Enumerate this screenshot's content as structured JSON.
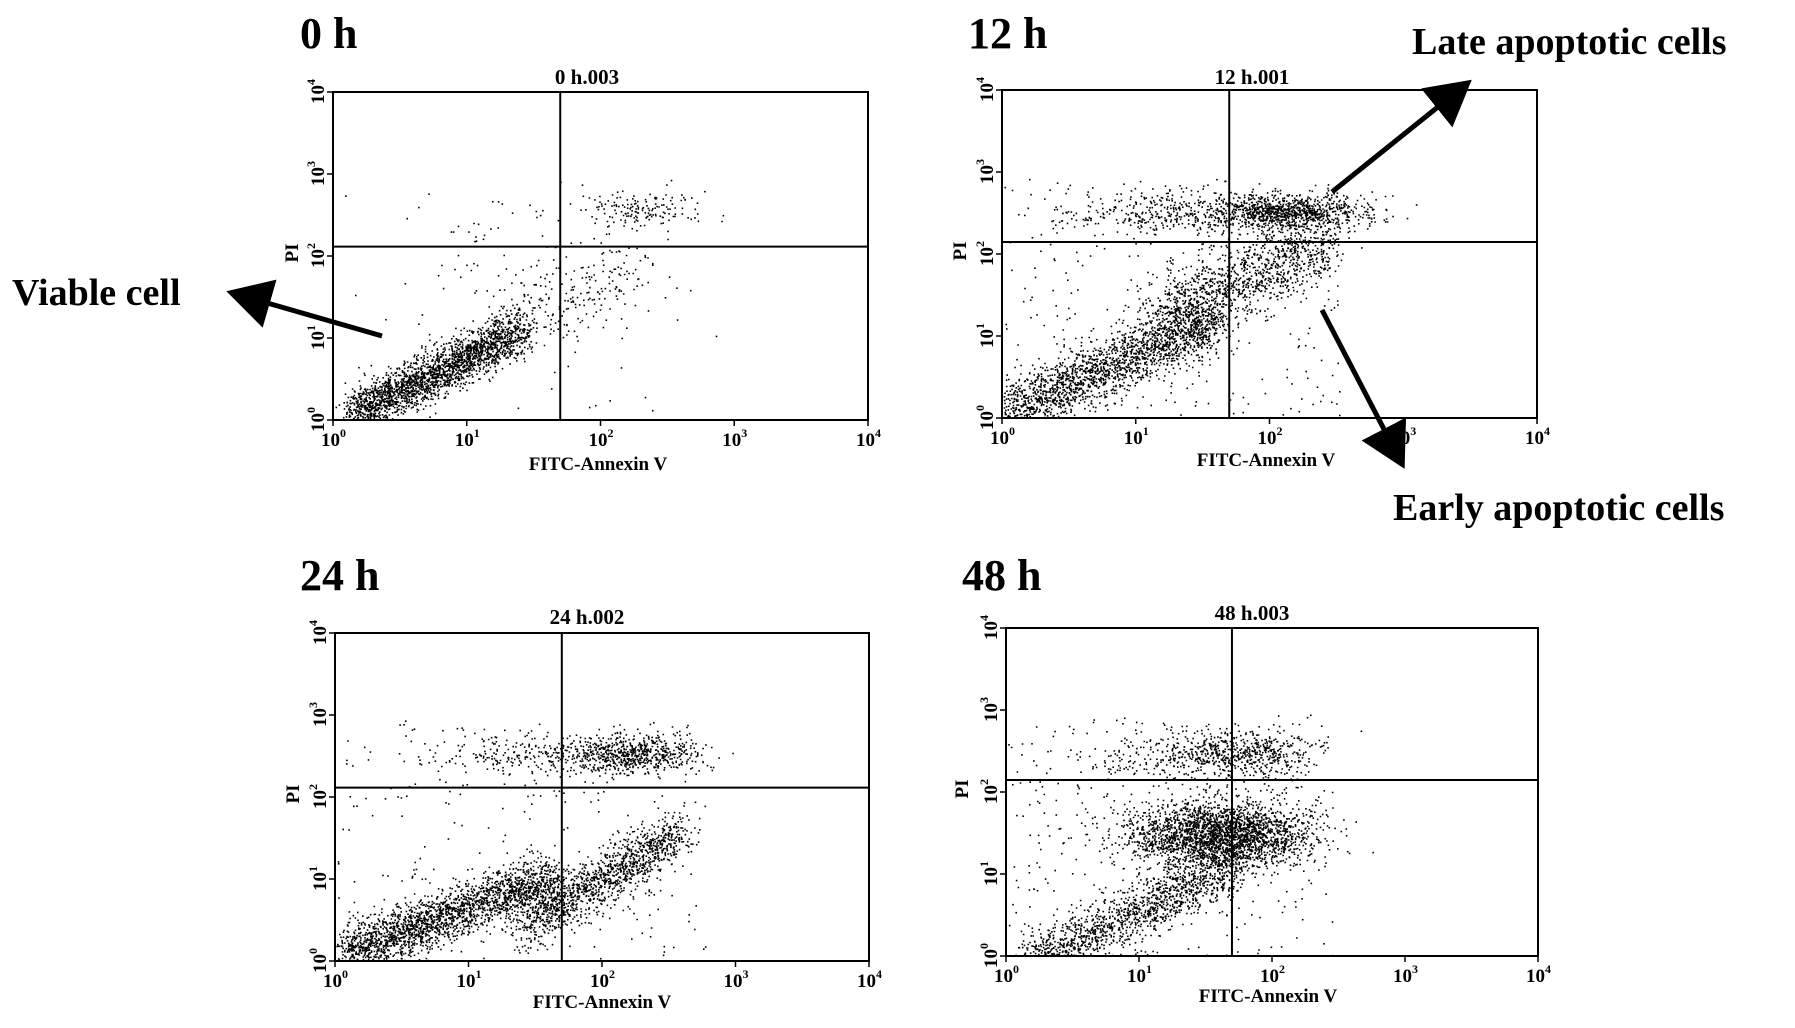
{
  "figure": {
    "annotations": [
      {
        "id": "viable",
        "text": "Viable cell"
      },
      {
        "id": "late",
        "text": "Late apoptotic cells"
      },
      {
        "id": "early",
        "text": "Early apoptotic cells"
      }
    ]
  },
  "chart_data": [
    {
      "type": "scatter",
      "panel_label": "0 h",
      "title": "0 h.003",
      "xlabel": "FITC-Annexin V",
      "ylabel": "PI",
      "x_scale": "log",
      "y_scale": "log",
      "xlim": [
        1,
        10000
      ],
      "ylim": [
        1,
        10000
      ],
      "x_ticks": [
        {
          "base": "10",
          "exp": "0"
        },
        {
          "base": "10",
          "exp": "1"
        },
        {
          "base": "10",
          "exp": "2"
        },
        {
          "base": "10",
          "exp": "3"
        },
        {
          "base": "10",
          "exp": "4"
        }
      ],
      "y_ticks": [
        {
          "base": "10",
          "exp": "0"
        },
        {
          "base": "10",
          "exp": "1"
        },
        {
          "base": "10",
          "exp": "2"
        },
        {
          "base": "10",
          "exp": "3"
        },
        {
          "base": "10",
          "exp": "4"
        }
      ],
      "gate": {
        "x": 50,
        "y": 130
      },
      "populations": [
        {
          "type": "diag",
          "x0": 1.4,
          "x1": 25,
          "slope": 0.82,
          "intercept": -0.05,
          "spread": 0.14,
          "n": 2300
        },
        {
          "type": "diag",
          "x0": 20,
          "x1": 160,
          "slope": 0.8,
          "intercept": 0.1,
          "spread": 0.3,
          "n": 260
        },
        {
          "type": "blob",
          "cx": 200,
          "cy": 380,
          "sx": 0.22,
          "sy": 0.1,
          "n": 150
        },
        {
          "type": "blob",
          "cx": 15,
          "cy": 140,
          "sx": 0.35,
          "sy": 0.35,
          "n": 40
        },
        {
          "type": "uniform",
          "x0": 1,
          "x1": 800,
          "y0": 1,
          "y1": 1000,
          "n": 60
        }
      ]
    },
    {
      "type": "scatter",
      "panel_label": "12 h",
      "title": "12 h.001",
      "xlabel": "FITC-Annexin V",
      "ylabel": "PI",
      "x_scale": "log",
      "y_scale": "log",
      "xlim": [
        1,
        10000
      ],
      "ylim": [
        1,
        10000
      ],
      "x_ticks": [
        {
          "base": "10",
          "exp": "0"
        },
        {
          "base": "10",
          "exp": "1"
        },
        {
          "base": "10",
          "exp": "2"
        },
        {
          "base": "10",
          "exp": "3"
        },
        {
          "base": "10",
          "exp": "4"
        }
      ],
      "y_ticks": [
        {
          "base": "10",
          "exp": "0"
        },
        {
          "base": "10",
          "exp": "1"
        },
        {
          "base": "10",
          "exp": "2"
        },
        {
          "base": "10",
          "exp": "3"
        },
        {
          "base": "10",
          "exp": "4"
        }
      ],
      "gate": {
        "x": 50,
        "y": 140
      },
      "populations": [
        {
          "type": "diag",
          "x0": 1,
          "x1": 40,
          "slope": 0.72,
          "intercept": 0.05,
          "spread": 0.18,
          "n": 2000
        },
        {
          "type": "diag",
          "x0": 15,
          "x1": 260,
          "slope": 0.7,
          "intercept": 0.45,
          "spread": 0.22,
          "n": 1200
        },
        {
          "type": "blob",
          "cx": 130,
          "cy": 330,
          "sx": 0.3,
          "sy": 0.11,
          "n": 1000
        },
        {
          "type": "blob",
          "cx": 18,
          "cy": 330,
          "sx": 0.4,
          "sy": 0.13,
          "n": 350
        },
        {
          "type": "uniform",
          "x0": 1,
          "x1": 350,
          "y0": 1,
          "y1": 900,
          "n": 300
        }
      ]
    },
    {
      "type": "scatter",
      "panel_label": "24 h",
      "title": "24 h.002",
      "xlabel": "FITC-Annexin V",
      "ylabel": "PI",
      "x_scale": "log",
      "y_scale": "log",
      "xlim": [
        1,
        10000
      ],
      "ylim": [
        1,
        10000
      ],
      "x_ticks": [
        {
          "base": "10",
          "exp": "0"
        },
        {
          "base": "10",
          "exp": "1"
        },
        {
          "base": "10",
          "exp": "2"
        },
        {
          "base": "10",
          "exp": "3"
        },
        {
          "base": "10",
          "exp": "4"
        }
      ],
      "y_ticks": [
        {
          "base": "10",
          "exp": "0"
        },
        {
          "base": "10",
          "exp": "1"
        },
        {
          "base": "10",
          "exp": "2"
        },
        {
          "base": "10",
          "exp": "3"
        },
        {
          "base": "10",
          "exp": "4"
        }
      ],
      "gate": {
        "x": 50,
        "y": 130
      },
      "populations": [
        {
          "type": "diag",
          "x0": 1.2,
          "x1": 40,
          "slope": 0.6,
          "intercept": 0.05,
          "spread": 0.16,
          "n": 2200
        },
        {
          "type": "diag",
          "x0": 25,
          "x1": 400,
          "slope": 0.95,
          "intercept": -0.9,
          "spread": 0.16,
          "n": 1300
        },
        {
          "type": "blob",
          "cx": 150,
          "cy": 340,
          "sx": 0.28,
          "sy": 0.12,
          "n": 700
        },
        {
          "type": "blob",
          "cx": 20,
          "cy": 340,
          "sx": 0.38,
          "sy": 0.13,
          "n": 200
        },
        {
          "type": "uniform",
          "x0": 1,
          "x1": 600,
          "y0": 1,
          "y1": 900,
          "n": 250
        }
      ]
    },
    {
      "type": "scatter",
      "panel_label": "48 h",
      "title": "48 h.003",
      "xlabel": "FITC-Annexin V",
      "ylabel": "PI",
      "x_scale": "log",
      "y_scale": "log",
      "xlim": [
        1,
        10000
      ],
      "ylim": [
        1,
        10000
      ],
      "x_ticks": [
        {
          "base": "10",
          "exp": "0"
        },
        {
          "base": "10",
          "exp": "1"
        },
        {
          "base": "10",
          "exp": "2"
        },
        {
          "base": "10",
          "exp": "3"
        },
        {
          "base": "10",
          "exp": "4"
        }
      ],
      "y_ticks": [
        {
          "base": "10",
          "exp": "0"
        },
        {
          "base": "10",
          "exp": "1"
        },
        {
          "base": "10",
          "exp": "2"
        },
        {
          "base": "10",
          "exp": "3"
        },
        {
          "base": "10",
          "exp": "4"
        }
      ],
      "gate": {
        "x": 50,
        "y": 140
      },
      "populations": [
        {
          "type": "diag",
          "x0": 1.5,
          "x1": 50,
          "slope": 0.75,
          "intercept": -0.2,
          "spread": 0.17,
          "n": 1400
        },
        {
          "type": "blob",
          "cx": 40,
          "cy": 30,
          "sx": 0.35,
          "sy": 0.2,
          "n": 2600
        },
        {
          "type": "blob",
          "cx": 55,
          "cy": 300,
          "sx": 0.3,
          "sy": 0.14,
          "n": 600
        },
        {
          "type": "blob",
          "cx": 12,
          "cy": 250,
          "sx": 0.35,
          "sy": 0.18,
          "n": 150
        },
        {
          "type": "uniform",
          "x0": 1,
          "x1": 300,
          "y0": 1,
          "y1": 900,
          "n": 300
        }
      ]
    }
  ]
}
